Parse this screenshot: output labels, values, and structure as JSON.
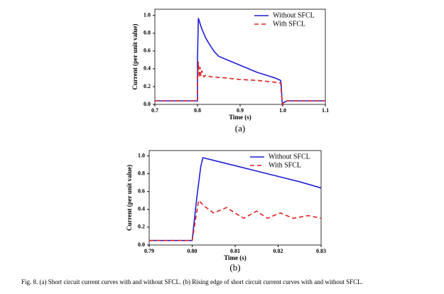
{
  "chart_data": [
    {
      "type": "line",
      "sublabel": "(a)",
      "xlabel": "Time (s)",
      "ylabel": "Current (per unit value)",
      "xlim": [
        0.7,
        1.1
      ],
      "ylim": [
        0,
        1.07
      ],
      "xticks": [
        0.7,
        0.8,
        0.9,
        {
          "value": 1.0,
          "label": "1.0"
        },
        1.1
      ],
      "yticks": [
        {
          "value": 0,
          "label": "0.0"
        },
        0.2,
        0.4,
        0.6,
        0.8,
        {
          "value": 1.0,
          "label": "1.0"
        }
      ],
      "legend": "upper right",
      "series": [
        {
          "name": "Without SFCL",
          "color": "#1f1fd6",
          "linestyle": "solid",
          "x": [
            0.7,
            0.8,
            0.8,
            0.802,
            0.81,
            0.82,
            0.83,
            0.84,
            0.85,
            0.86,
            0.88,
            0.9,
            0.92,
            0.94,
            0.96,
            0.98,
            0.995,
            0.996,
            0.999,
            1.002,
            1.01,
            1.1
          ],
          "values": [
            0.04,
            0.04,
            0.5,
            0.97,
            0.85,
            0.74,
            0.66,
            0.59,
            0.54,
            0.52,
            0.48,
            0.44,
            0.4,
            0.36,
            0.33,
            0.3,
            0.27,
            0.24,
            0.0,
            0.02,
            0.04,
            0.04
          ]
        },
        {
          "name": "With SFCL",
          "color": "#e02020",
          "linestyle": "dashed",
          "x": [
            0.7,
            0.8,
            0.8,
            0.802,
            0.804,
            0.806,
            0.808,
            0.81,
            0.815,
            0.82,
            0.83,
            0.86,
            0.9,
            0.94,
            0.98,
            0.995,
            0.999,
            1.002,
            1.01,
            1.1
          ],
          "values": [
            0.04,
            0.04,
            0.3,
            0.48,
            0.3,
            0.42,
            0.32,
            0.38,
            0.31,
            0.33,
            0.31,
            0.3,
            0.28,
            0.27,
            0.25,
            0.24,
            0.0,
            0.02,
            0.04,
            0.04
          ]
        }
      ]
    },
    {
      "type": "line",
      "sublabel": "(b)",
      "xlabel": "Time (s)",
      "ylabel": "Current (per unit value)",
      "xlim": [
        0.79,
        0.83
      ],
      "ylim": [
        0,
        1.06
      ],
      "xticks": [
        0.79,
        {
          "value": 0.8,
          "label": "0.80"
        },
        0.81,
        0.82,
        0.83
      ],
      "yticks": [
        {
          "value": 0,
          "label": "0.0"
        },
        0.2,
        0.4,
        0.6,
        0.8,
        {
          "value": 1.0,
          "label": "1.0"
        }
      ],
      "legend": "upper right",
      "series": [
        {
          "name": "Without SFCL",
          "color": "#1f1fd6",
          "linestyle": "solid",
          "x": [
            0.79,
            0.8,
            0.801,
            0.802,
            0.8025,
            0.805,
            0.81,
            0.815,
            0.82,
            0.825,
            0.83
          ],
          "values": [
            0.05,
            0.05,
            0.5,
            0.88,
            0.98,
            0.95,
            0.89,
            0.83,
            0.77,
            0.71,
            0.64
          ]
        },
        {
          "name": "With SFCL",
          "color": "#e02020",
          "linestyle": "dashed",
          "x": [
            0.79,
            0.8,
            0.8015,
            0.803,
            0.805,
            0.808,
            0.812,
            0.815,
            0.8175,
            0.8205,
            0.8235,
            0.827,
            0.83
          ],
          "values": [
            0.05,
            0.05,
            0.5,
            0.43,
            0.36,
            0.42,
            0.3,
            0.38,
            0.3,
            0.36,
            0.3,
            0.33,
            0.3
          ]
        }
      ]
    }
  ],
  "caption": "Fig. 8. (a) Short circuit current curves with and without SFCL.  (b) Rising edge of short circuit current curves with and without SFCL."
}
